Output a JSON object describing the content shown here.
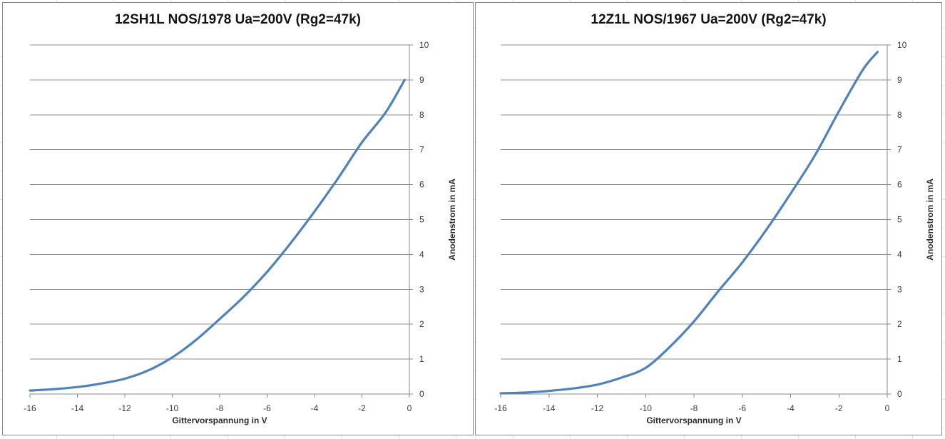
{
  "window": {
    "background": "#ffffff",
    "sheet_gridline_color": "#dde3ec"
  },
  "styles": {
    "chart_border": "#8a8a8a",
    "gridline_color": "#909090",
    "axis_color": "#8a8a8a",
    "tick_label_color": "#3a3a3a",
    "title_color": "#141414",
    "accent_line_color": "#4F81BD"
  },
  "chart_data": [
    {
      "type": "line",
      "title": "12SH1L NOS/1978 Ua=200V (Rg2=47k)",
      "xlabel": "Gittervorspannung in V",
      "ylabel": "Anodenstrom in mA",
      "xlim": [
        -16,
        0
      ],
      "ylim": [
        0,
        10
      ],
      "x_ticks": [
        "-16",
        "-14",
        "-12",
        "-10",
        "-8",
        "-6",
        "-4",
        "-2",
        "0"
      ],
      "y_ticks": [
        "0",
        "1",
        "2",
        "3",
        "4",
        "5",
        "6",
        "7",
        "8",
        "9",
        "10"
      ],
      "x_tick_values": [
        -16,
        -14,
        -12,
        -10,
        -8,
        -6,
        -4,
        -2,
        0
      ],
      "y_tick_values": [
        0,
        1,
        2,
        3,
        4,
        5,
        6,
        7,
        8,
        9,
        10
      ],
      "grid": "horizontal",
      "y_axis_side": "right",
      "legend": "none",
      "line_color": "#4F81BD",
      "series": [
        {
          "name": "Anodenstrom",
          "points": [
            [
              -16,
              0.1
            ],
            [
              -15,
              0.14
            ],
            [
              -14,
              0.2
            ],
            [
              -13,
              0.3
            ],
            [
              -12,
              0.44
            ],
            [
              -11,
              0.68
            ],
            [
              -10,
              1.05
            ],
            [
              -9,
              1.55
            ],
            [
              -8,
              2.15
            ],
            [
              -7,
              2.78
            ],
            [
              -6,
              3.5
            ],
            [
              -5,
              4.33
            ],
            [
              -4,
              5.23
            ],
            [
              -3,
              6.19
            ],
            [
              -2,
              7.21
            ],
            [
              -1,
              8.07
            ],
            [
              -0.2,
              9.0
            ]
          ]
        }
      ]
    },
    {
      "type": "line",
      "title": "12Z1L NOS/1967 Ua=200V (Rg2=47k)",
      "xlabel": "Gittervorspannung in V",
      "ylabel": "Anodenstrom in mA",
      "xlim": [
        -16,
        0
      ],
      "ylim": [
        0,
        10
      ],
      "x_ticks": [
        "-16",
        "-14",
        "-12",
        "-10",
        "-8",
        "-6",
        "-4",
        "-2",
        "0"
      ],
      "y_ticks": [
        "0",
        "1",
        "2",
        "3",
        "4",
        "5",
        "6",
        "7",
        "8",
        "9",
        "10"
      ],
      "x_tick_values": [
        -16,
        -14,
        -12,
        -10,
        -8,
        -6,
        -4,
        -2,
        0
      ],
      "y_tick_values": [
        0,
        1,
        2,
        3,
        4,
        5,
        6,
        7,
        8,
        9,
        10
      ],
      "grid": "horizontal",
      "y_axis_side": "right",
      "legend": "none",
      "line_color": "#4F81BD",
      "series": [
        {
          "name": "Anodenstrom",
          "points": [
            [
              -16,
              0.02
            ],
            [
              -15,
              0.04
            ],
            [
              -14,
              0.09
            ],
            [
              -13,
              0.16
            ],
            [
              -12,
              0.27
            ],
            [
              -11,
              0.47
            ],
            [
              -10,
              0.75
            ],
            [
              -9,
              1.35
            ],
            [
              -8,
              2.08
            ],
            [
              -7,
              2.94
            ],
            [
              -6,
              3.77
            ],
            [
              -5,
              4.71
            ],
            [
              -4,
              5.74
            ],
            [
              -3,
              6.83
            ],
            [
              -2,
              8.1
            ],
            [
              -1,
              9.3
            ],
            [
              -0.4,
              9.8
            ]
          ]
        }
      ]
    }
  ]
}
